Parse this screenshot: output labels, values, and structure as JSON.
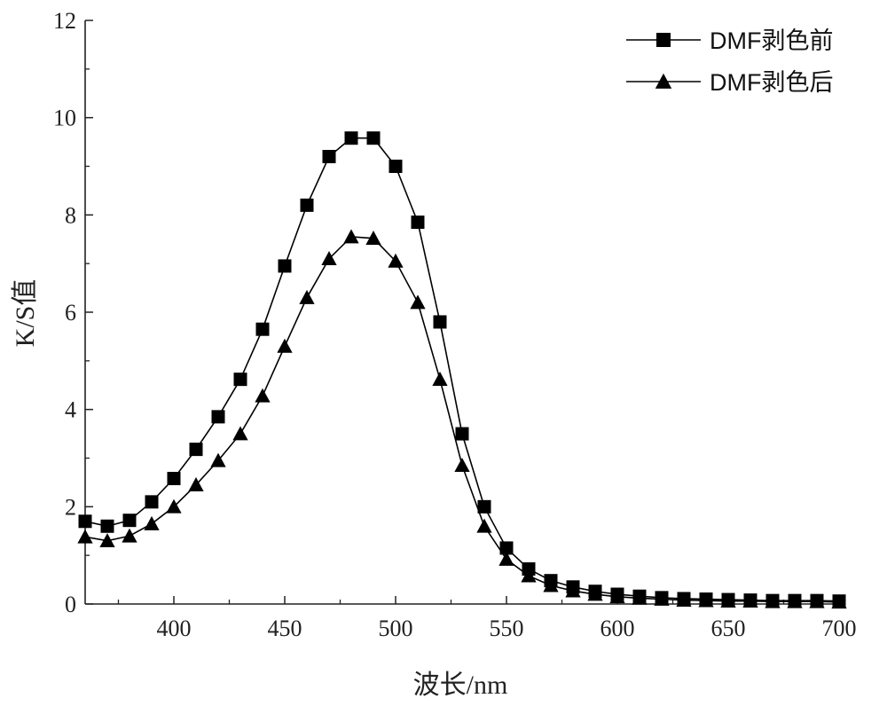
{
  "chart_data": {
    "type": "line",
    "xlabel": "波长/nm",
    "ylabel": "K/S值",
    "xlim": [
      360,
      700
    ],
    "ylim": [
      0,
      12
    ],
    "xticks": [
      400,
      450,
      500,
      550,
      600,
      650,
      700
    ],
    "yticks": [
      0,
      2,
      4,
      6,
      8,
      10,
      12
    ],
    "grid": false,
    "legend_position": "top-right",
    "x": [
      360,
      370,
      380,
      390,
      400,
      410,
      420,
      430,
      440,
      450,
      460,
      470,
      480,
      490,
      500,
      510,
      520,
      530,
      540,
      550,
      560,
      570,
      580,
      590,
      600,
      610,
      620,
      630,
      640,
      650,
      660,
      670,
      680,
      690,
      700
    ],
    "series": [
      {
        "name": "DMF剥色前",
        "marker": "square",
        "color": "#000000",
        "values": [
          1.7,
          1.6,
          1.72,
          2.1,
          2.58,
          3.18,
          3.85,
          4.62,
          5.65,
          6.95,
          8.2,
          9.2,
          9.58,
          9.58,
          9.0,
          7.85,
          5.8,
          3.5,
          2.0,
          1.15,
          0.72,
          0.48,
          0.35,
          0.26,
          0.2,
          0.16,
          0.13,
          0.11,
          0.1,
          0.09,
          0.08,
          0.07,
          0.07,
          0.07,
          0.06
        ]
      },
      {
        "name": "DMF剥色后",
        "marker": "triangle",
        "color": "#000000",
        "values": [
          1.38,
          1.3,
          1.4,
          1.65,
          2.0,
          2.45,
          2.95,
          3.5,
          4.28,
          5.3,
          6.3,
          7.1,
          7.55,
          7.52,
          7.05,
          6.2,
          4.62,
          2.85,
          1.6,
          0.92,
          0.58,
          0.38,
          0.27,
          0.2,
          0.15,
          0.12,
          0.1,
          0.08,
          0.07,
          0.06,
          0.06,
          0.05,
          0.05,
          0.05,
          0.04
        ]
      }
    ]
  }
}
